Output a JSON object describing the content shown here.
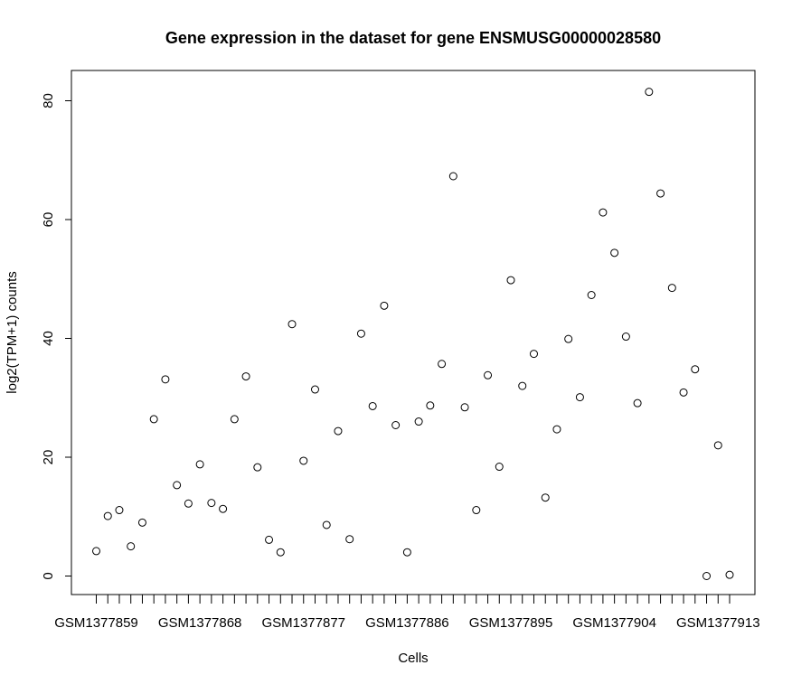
{
  "chart_data": {
    "type": "scatter",
    "title": "Gene expression in the dataset for gene ENSMUSG00000028580",
    "xlabel": "Cells",
    "ylabel": "log2(TPM+1) counts",
    "ylim": [
      0,
      80
    ],
    "yticks": [
      0,
      20,
      40,
      60,
      80
    ],
    "grid": false,
    "x_tick_count": 56,
    "x_tick_labels": [
      {
        "index": 1,
        "label": "GSM1377859"
      },
      {
        "index": 10,
        "label": "GSM1377868"
      },
      {
        "index": 19,
        "label": "GSM1377877"
      },
      {
        "index": 28,
        "label": "GSM1377886"
      },
      {
        "index": 37,
        "label": "GSM1377895"
      },
      {
        "index": 46,
        "label": "GSM1377904"
      },
      {
        "index": 55,
        "label": "GSM1377913"
      }
    ],
    "values": [
      4.2,
      10.1,
      11.1,
      5.0,
      9.0,
      26.4,
      33.1,
      15.3,
      12.2,
      18.8,
      12.3,
      11.3,
      26.4,
      33.6,
      18.3,
      6.1,
      4.0,
      42.4,
      19.4,
      31.4,
      8.6,
      24.4,
      6.2,
      40.8,
      28.6,
      45.5,
      25.4,
      4.0,
      26.0,
      28.7,
      35.7,
      67.3,
      28.4,
      11.1,
      33.8,
      18.4,
      49.8,
      32.0,
      37.4,
      13.2,
      24.7,
      39.9,
      30.1,
      47.3,
      61.2,
      54.4,
      40.3,
      29.1,
      81.5,
      64.4,
      48.5,
      30.9,
      34.8,
      0.0,
      22.0,
      0.2
    ]
  }
}
